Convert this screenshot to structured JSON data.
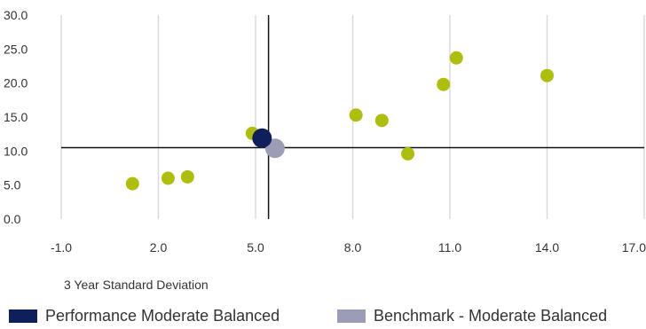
{
  "chart_data": {
    "type": "scatter",
    "xlabel": "3 Year Standard Deviation",
    "ylabel": "",
    "xlim": [
      -1.0,
      17.0
    ],
    "ylim": [
      0.0,
      30.0
    ],
    "x_ticks": [
      "-1.0",
      "2.0",
      "5.0",
      "8.0",
      "11.0",
      "14.0",
      "17.0"
    ],
    "y_ticks": [
      "0.0",
      "5.0",
      "10.0",
      "15.0",
      "20.0",
      "25.0",
      "30.0"
    ],
    "grid": "vertical",
    "crosshair": {
      "x": 5.4,
      "y": 10.5
    },
    "series": [
      {
        "name": "",
        "color": "#adbe0f",
        "points": [
          {
            "x": 1.2,
            "y": 5.2
          },
          {
            "x": 2.3,
            "y": 6.0
          },
          {
            "x": 2.9,
            "y": 6.2
          },
          {
            "x": 4.9,
            "y": 12.6
          },
          {
            "x": 8.1,
            "y": 15.3
          },
          {
            "x": 8.9,
            "y": 14.5
          },
          {
            "x": 9.7,
            "y": 9.6
          },
          {
            "x": 10.8,
            "y": 19.8
          },
          {
            "x": 11.2,
            "y": 23.7
          },
          {
            "x": 14.0,
            "y": 21.1
          }
        ]
      },
      {
        "name": "Performance Moderate Balanced",
        "color": "#0e1f5b",
        "points": [
          {
            "x": 5.2,
            "y": 11.9
          }
        ]
      },
      {
        "name": "Benchmark - Moderate Balanced",
        "color": "#9a9db5",
        "points": [
          {
            "x": 5.6,
            "y": 10.4
          }
        ]
      }
    ],
    "legend": "bottom"
  }
}
